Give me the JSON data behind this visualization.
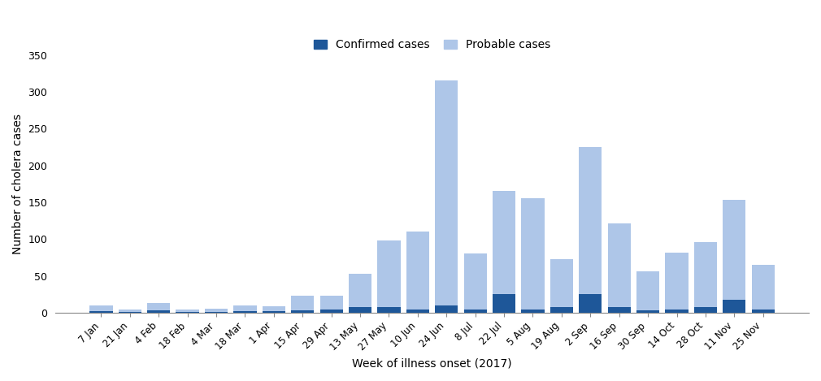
{
  "weeks": [
    "7 Jan",
    "21 Jan",
    "4 Feb",
    "18 Feb",
    "4 Mar",
    "18 Mar",
    "1 Apr",
    "15 Apr",
    "29 Apr",
    "13 May",
    "27 May",
    "10 Jun",
    "24 Jun",
    "8 Jul",
    "22 Jul",
    "5 Aug",
    "19 Aug",
    "2 Sep",
    "16 Sep",
    "30 Sep",
    "14 Oct",
    "28 Oct",
    "11 Nov",
    "25 Nov"
  ],
  "confirmed": [
    2,
    1,
    3,
    1,
    1,
    2,
    2,
    3,
    5,
    8,
    8,
    5,
    10,
    5,
    25,
    5,
    8,
    25,
    8,
    3,
    5,
    8,
    18,
    5
  ],
  "probable": [
    8,
    3,
    10,
    3,
    5,
    8,
    7,
    20,
    18,
    45,
    90,
    105,
    305,
    75,
    140,
    150,
    65,
    200,
    113,
    53,
    77,
    88,
    135,
    60
  ],
  "confirmed_color": "#1e5799",
  "probable_color": "#aec6e8",
  "ylabel": "Number of cholera cases",
  "xlabel": "Week of illness onset (2017)",
  "ylim": [
    0,
    350
  ],
  "yticks": [
    0,
    50,
    100,
    150,
    200,
    250,
    300,
    350
  ],
  "legend_confirmed": "Confirmed cases",
  "legend_probable": "Probable cases",
  "bar_width": 0.8,
  "figsize": [
    10.1,
    4.69
  ],
  "dpi": 100
}
